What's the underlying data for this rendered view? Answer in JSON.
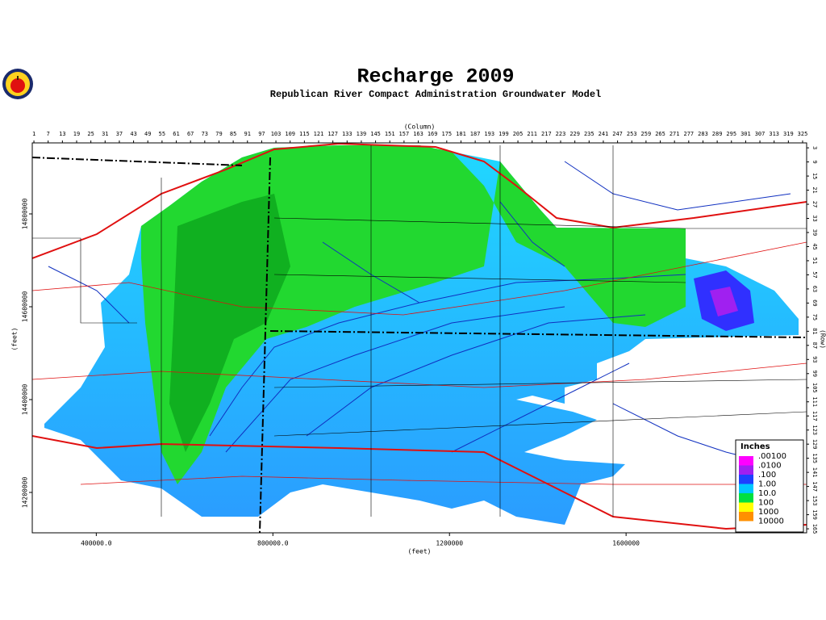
{
  "title": "Recharge 2009",
  "subtitle": "Republican River Compact Administration Groundwater Model",
  "x_axis": {
    "label": "(feet)",
    "lim": [
      255000,
      2009000
    ],
    "ticks": [
      {
        "value": 400000,
        "label": "400000.0"
      },
      {
        "value": 800000,
        "label": "800000.0"
      },
      1200000,
      1600000
    ]
  },
  "y_axis": {
    "label": "(feet)",
    "lim": [
      14113000,
      14953000
    ],
    "ticks": [
      14200000,
      14400000,
      14600000,
      14800000
    ]
  },
  "columns": {
    "label": "(Column)",
    "lim": [
      0.3,
      326.7
    ],
    "ticks": [
      1,
      7,
      13,
      19,
      25,
      31,
      37,
      43,
      49,
      55,
      61,
      67,
      73,
      79,
      85,
      91,
      97,
      103,
      109,
      115,
      121,
      127,
      133,
      139,
      145,
      151,
      157,
      163,
      169,
      175,
      181,
      187,
      193,
      199,
      205,
      211,
      217,
      223,
      229,
      235,
      241,
      247,
      253,
      259,
      265,
      271,
      277,
      283,
      289,
      295,
      301,
      307,
      313,
      319,
      325
    ]
  },
  "rows": {
    "label": "(Row)",
    "lim": [
      0.9,
      166.7
    ],
    "ticks": [
      3,
      9,
      15,
      21,
      27,
      33,
      39,
      45,
      51,
      57,
      63,
      69,
      75,
      81,
      87,
      93,
      99,
      105,
      111,
      117,
      123,
      129,
      135,
      141,
      147,
      153,
      159,
      165
    ]
  },
  "legend": {
    "title": "Inches",
    "labels": [
      ".00100",
      ".0100",
      ".100",
      "1.00",
      "10.0",
      "100",
      "1000",
      "10000"
    ],
    "colors": [
      "#ff00ff",
      "#a020f0",
      "#1e40ff",
      "#00c8ff",
      "#00e040",
      "#ffff00",
      "#ff9000"
    ]
  }
}
